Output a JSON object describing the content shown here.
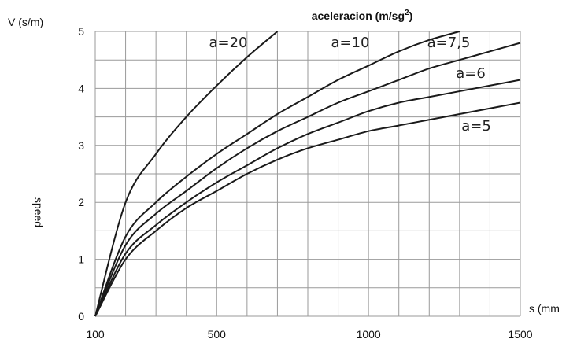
{
  "chart_data": {
    "type": "line",
    "title": "aceleracion (m/sg²)",
    "title_main": "aceleracion (m/sg",
    "title_sup": "2",
    "title_close": ")",
    "xlabel": "s (mm",
    "ylabel": "V (s/m)",
    "ylabel_side": "speed",
    "x_ticks": [
      "100",
      "500",
      "1000",
      "1500"
    ],
    "y_ticks": [
      "0",
      "1",
      "2",
      "3",
      "4",
      "5"
    ],
    "xlim": [
      100,
      1500
    ],
    "ylim": [
      0,
      5
    ],
    "grid": true,
    "series": [
      {
        "name": "a=20",
        "x": [
          100,
          200,
          300,
          400,
          500,
          600,
          700
        ],
        "y": [
          0,
          2.0,
          2.85,
          3.5,
          4.05,
          4.55,
          5.0
        ]
      },
      {
        "name": "a=10",
        "x": [
          100,
          200,
          300,
          400,
          500,
          600,
          700,
          800,
          900,
          1000,
          1100,
          1200,
          1300
        ],
        "y": [
          0,
          1.4,
          2.0,
          2.45,
          2.85,
          3.2,
          3.55,
          3.85,
          4.15,
          4.4,
          4.65,
          4.85,
          5.0
        ]
      },
      {
        "name": "a=7,5",
        "x": [
          100,
          200,
          300,
          400,
          500,
          600,
          700,
          800,
          900,
          1000,
          1100,
          1200,
          1300,
          1400,
          1500
        ],
        "y": [
          0,
          1.25,
          1.8,
          2.2,
          2.6,
          2.95,
          3.25,
          3.5,
          3.75,
          3.95,
          4.15,
          4.35,
          4.5,
          4.65,
          4.8
        ]
      },
      {
        "name": "a=6",
        "x": [
          100,
          200,
          300,
          400,
          500,
          600,
          700,
          800,
          900,
          1000,
          1100,
          1200,
          1300,
          1400,
          1500
        ],
        "y": [
          0,
          1.1,
          1.6,
          2.0,
          2.35,
          2.65,
          2.95,
          3.2,
          3.4,
          3.6,
          3.75,
          3.85,
          3.95,
          4.05,
          4.15
        ]
      },
      {
        "name": "a=5",
        "x": [
          100,
          200,
          300,
          400,
          500,
          600,
          700,
          800,
          900,
          1000,
          1100,
          1200,
          1300,
          1400,
          1500
        ],
        "y": [
          0,
          1.0,
          1.5,
          1.9,
          2.2,
          2.5,
          2.75,
          2.95,
          3.1,
          3.25,
          3.35,
          3.45,
          3.55,
          3.65,
          3.75
        ]
      }
    ]
  }
}
